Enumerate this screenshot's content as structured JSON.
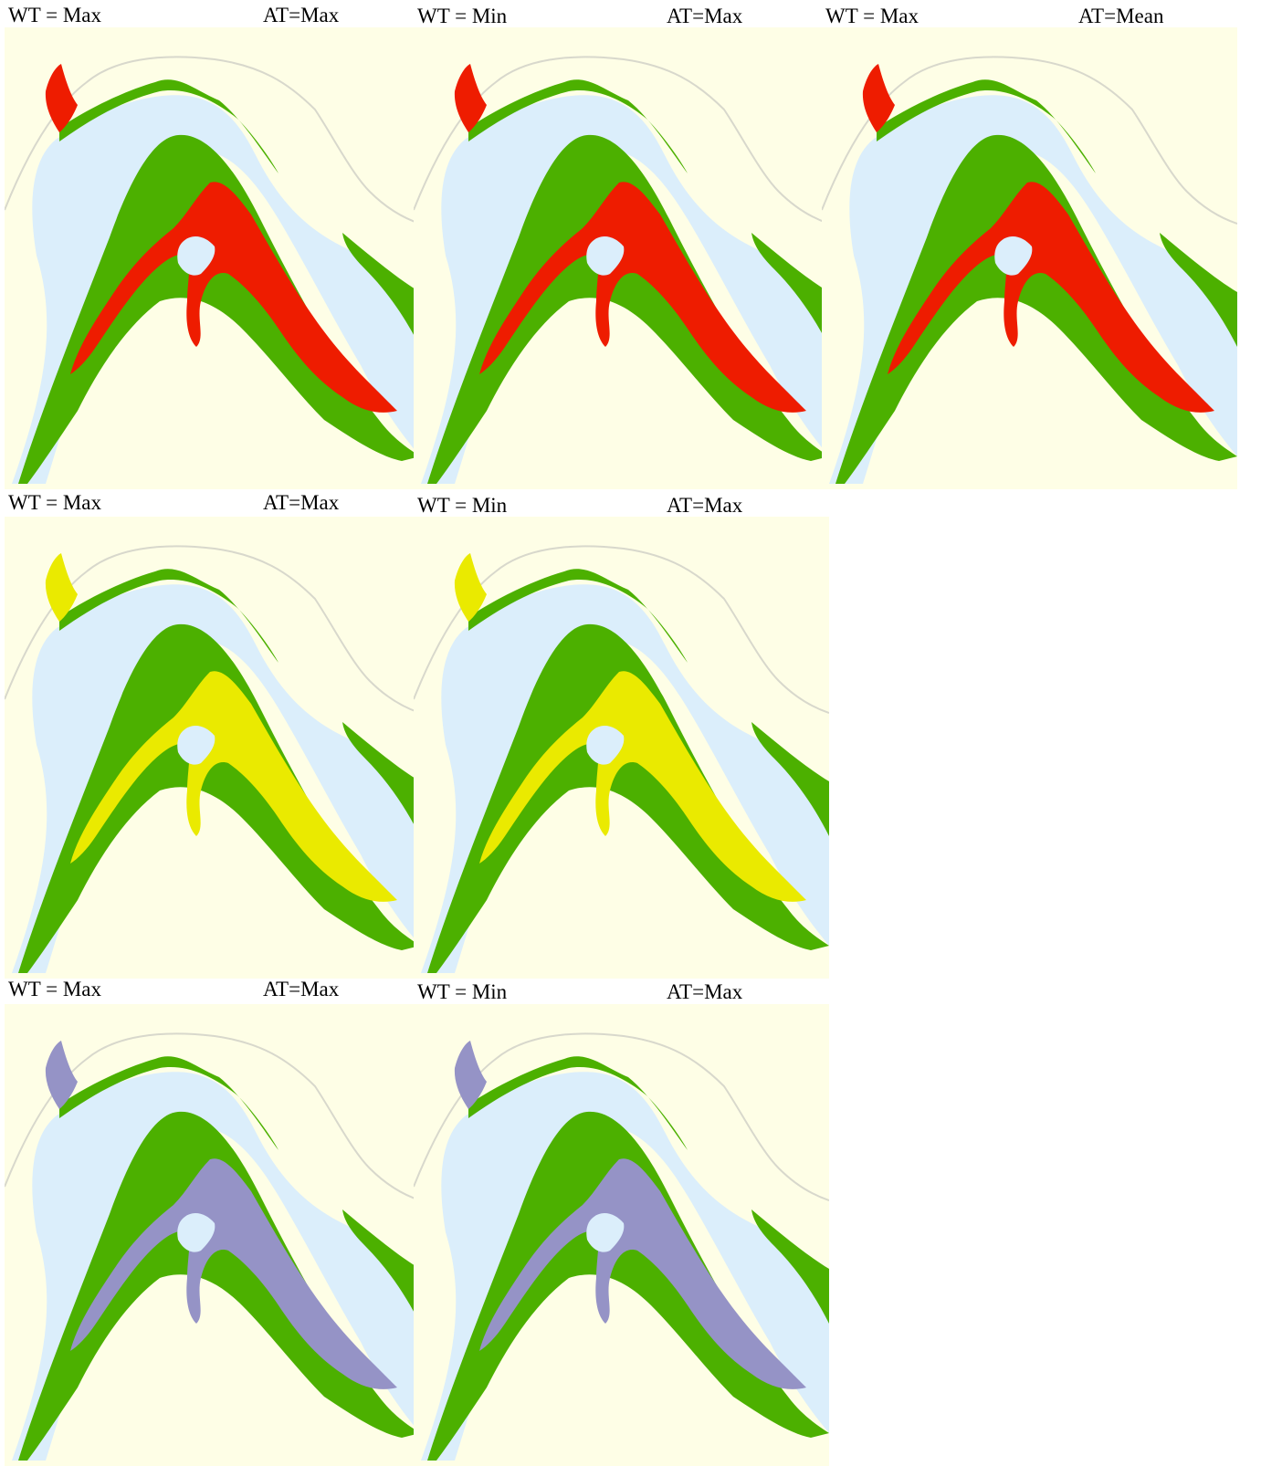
{
  "colors": {
    "land": "#fefee6",
    "water": "#dbeefb",
    "vegetation": "#4cb000",
    "road": "#d8d8cc",
    "class_red": "#ee1c00",
    "class_yellow": "#eaea00",
    "class_purple": "#9593c6"
  },
  "panels": [
    {
      "wt": "WT = Max",
      "at": "AT=Max",
      "fill": "class_red"
    },
    {
      "wt": "WT = Min",
      "at": "AT=Max",
      "fill": "class_red"
    },
    {
      "wt": "WT = Max",
      "at": "AT=Mean",
      "fill": "class_red"
    },
    {
      "wt": "WT = Max",
      "at": "AT=Max",
      "fill": "class_yellow"
    },
    {
      "wt": "WT = Min",
      "at": "AT=Max",
      "fill": "class_yellow"
    },
    {
      "wt": "WT = Max",
      "at": "AT=Max",
      "fill": "class_purple"
    },
    {
      "wt": "WT = Min",
      "at": "AT=Max",
      "fill": "class_purple"
    }
  ]
}
